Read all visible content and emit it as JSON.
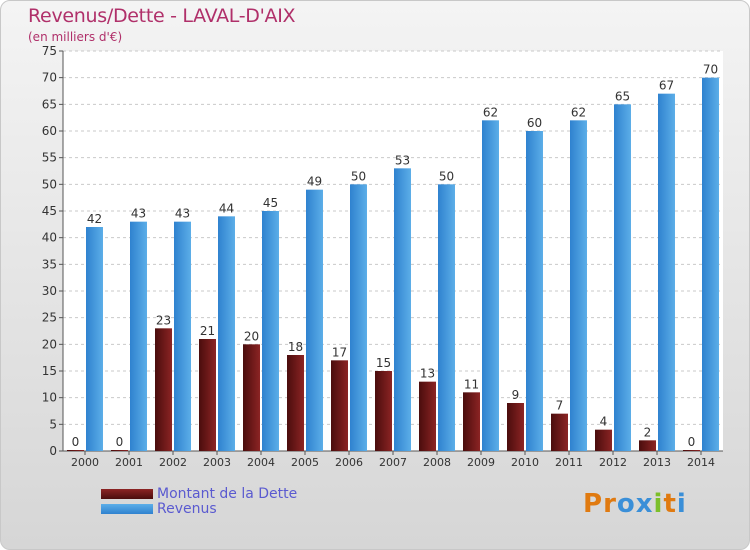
{
  "chart_data": {
    "type": "bar",
    "title": "Revenus/Dette - LAVAL-D'AIX",
    "subtitle": "(en milliers d'€)",
    "categories": [
      "2000",
      "2001",
      "2002",
      "2003",
      "2004",
      "2005",
      "2006",
      "2007",
      "2008",
      "2009",
      "2010",
      "2011",
      "2012",
      "2013",
      "2014"
    ],
    "series": [
      {
        "name": "Montant de la Dette",
        "color": "#7a1a1a",
        "values": [
          0,
          0,
          23,
          21,
          20,
          18,
          17,
          15,
          13,
          11,
          9,
          7,
          4,
          2,
          0
        ]
      },
      {
        "name": "Revenus",
        "color": "#3a8fd8",
        "values": [
          42,
          43,
          43,
          44,
          45,
          49,
          50,
          53,
          50,
          62,
          60,
          62,
          65,
          67,
          70
        ]
      }
    ],
    "ylim": [
      0,
      75
    ],
    "yticks": [
      0,
      5,
      10,
      15,
      20,
      25,
      30,
      35,
      40,
      45,
      50,
      55,
      60,
      65,
      70,
      75
    ],
    "grid": true,
    "legend_position": "bottom-left",
    "xlabel": "",
    "ylabel": ""
  },
  "logo": {
    "text": "Proxiti",
    "letters": [
      "P",
      "r",
      "o",
      "x",
      "i",
      "t",
      "i"
    ],
    "colors": [
      "#e07a10",
      "#e07a10",
      "#3a8fd8",
      "#3a8fd8",
      "#7cbf2a",
      "#e07a10",
      "#3a8fd8"
    ]
  }
}
